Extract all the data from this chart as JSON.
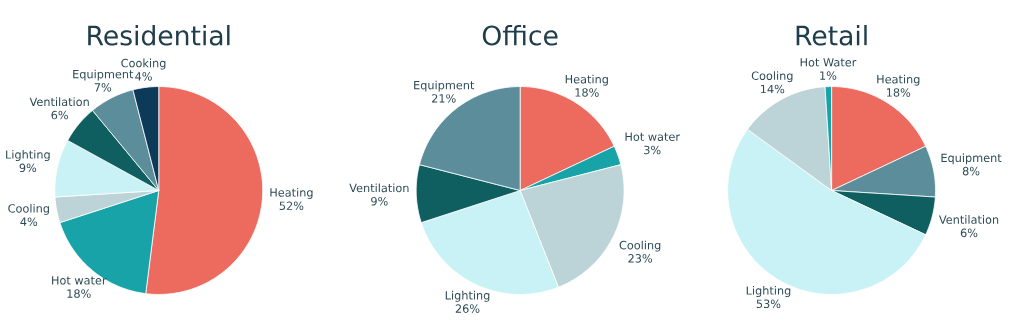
{
  "chart_data": [
    {
      "type": "pie",
      "title": "Residential",
      "categories": [
        "Heating",
        "Hot water",
        "Cooling",
        "Lighting",
        "Ventilation",
        "Equipment",
        "Cooking"
      ],
      "values": [
        52,
        18,
        4,
        9,
        6,
        7,
        4
      ],
      "value_labels": [
        "52%",
        "18%",
        "4%",
        "9%",
        "6%",
        "7%",
        "4%"
      ],
      "colors": [
        "#ec6a5e",
        "#18a3a8",
        "#bcd3d7",
        "#c8f2f5",
        "#0f5f60",
        "#5b8e9a",
        "#0e3a5a"
      ]
    },
    {
      "type": "pie",
      "title": "Office",
      "categories": [
        "Heating",
        "Hot water",
        "Cooling",
        "Lighting",
        "Ventilation",
        "Equipment"
      ],
      "values": [
        18,
        3,
        23,
        26,
        9,
        21
      ],
      "value_labels": [
        "18%",
        "3%",
        "23%",
        "26%",
        "9%",
        "21%"
      ],
      "colors": [
        "#ec6a5e",
        "#18a3a8",
        "#bcd3d7",
        "#c8f2f5",
        "#0f5f60",
        "#5b8e9a"
      ]
    },
    {
      "type": "pie",
      "title": "Retail",
      "categories": [
        "Heating",
        "Equipment",
        "Ventilation",
        "Lighting",
        "Cooling",
        "Hot Water"
      ],
      "values": [
        18,
        8,
        6,
        53,
        14,
        1
      ],
      "value_labels": [
        "18%",
        "8%",
        "6%",
        "53%",
        "14%",
        "1%"
      ],
      "colors": [
        "#ec6a5e",
        "#5b8e9a",
        "#0f5f60",
        "#c8f2f5",
        "#bcd3d7",
        "#18a3a8"
      ]
    }
  ]
}
